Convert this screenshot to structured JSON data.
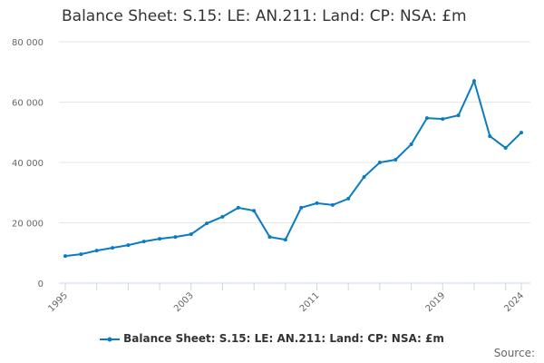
{
  "chart_data": {
    "type": "line",
    "title": "Balance Sheet: S.15: LE: AN.211: Land: CP: NSA: £m",
    "x": [
      1995,
      1996,
      1997,
      1998,
      1999,
      2000,
      2001,
      2002,
      2003,
      2004,
      2005,
      2006,
      2007,
      2008,
      2009,
      2010,
      2011,
      2012,
      2013,
      2014,
      2015,
      2016,
      2017,
      2018,
      2019,
      2020,
      2021,
      2022,
      2023,
      2024
    ],
    "series": [
      {
        "name": "Balance Sheet: S.15: LE: AN.211: Land: CP: NSA: £m",
        "values": [
          9000,
          9600,
          10800,
          11700,
          12600,
          13800,
          14700,
          15300,
          16200,
          19800,
          22000,
          25000,
          24000,
          15300,
          14400,
          25000,
          26500,
          25900,
          28000,
          35200,
          40000,
          40900,
          46000,
          54700,
          54400,
          55600,
          67000,
          48700,
          44800,
          49900
        ],
        "color": "#0a7cc1"
      }
    ],
    "x_tick_labels": [
      "1995",
      "2003",
      "2011",
      "2019",
      "2024"
    ],
    "y_tick_labels": [
      "0",
      "20 000",
      "40 000",
      "60 000",
      "80 000"
    ],
    "ylim": [
      0,
      80000
    ],
    "xlim": [
      1995,
      2024
    ],
    "grid": true,
    "legend": "bottom"
  },
  "source_label": "Source:"
}
